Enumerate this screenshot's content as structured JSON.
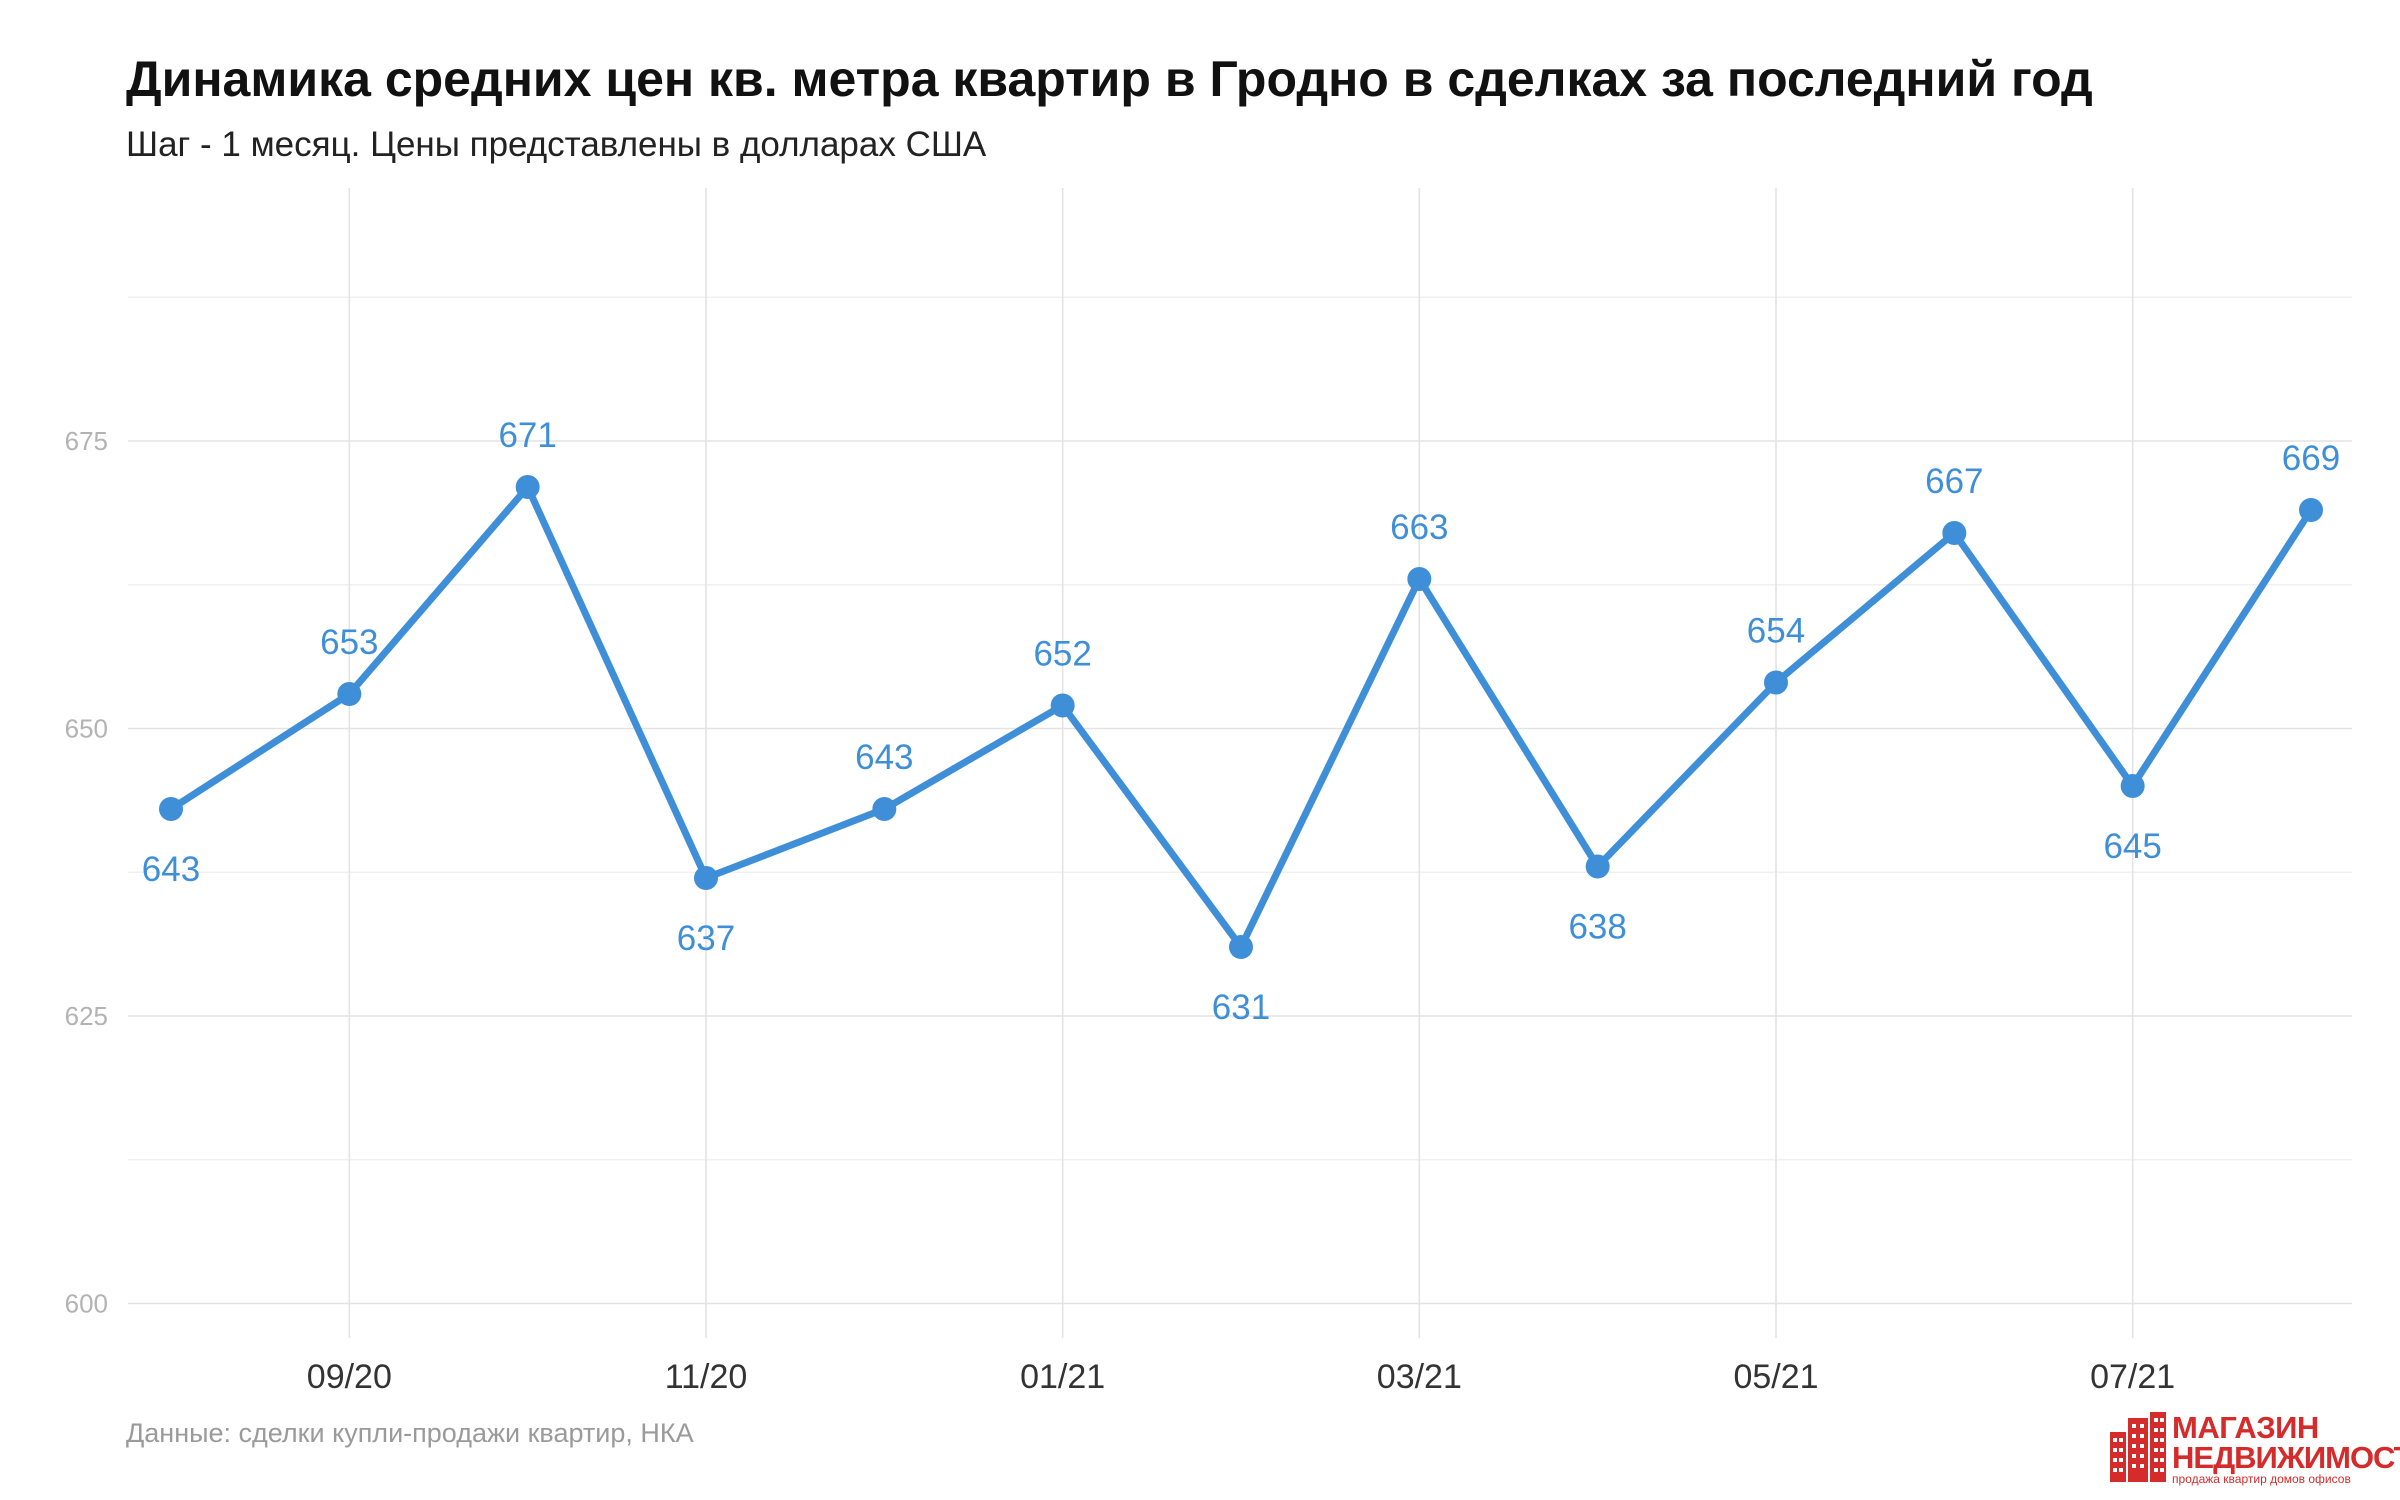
{
  "header": {
    "title": "Динамика средних цен кв. метра квартир в Гродно в сделках за последний год",
    "subtitle": "Шаг - 1 месяц. Цены представлены в долларах США"
  },
  "footer": {
    "caption": "Данные: сделки купли-продажи квартир, НКА"
  },
  "logo": {
    "line1": "МАГАЗИН",
    "line2": "НЕДВИЖИМОСТИ",
    "line3": "продажа квартир домов офисов"
  },
  "colors": {
    "series": "#3f8fd8",
    "label": "#3f8fd8",
    "logo": "#d62b2b"
  },
  "chart_data": {
    "type": "line",
    "title": "Динамика средних цен кв. метра квартир в Гродно в сделках за последний год",
    "subtitle": "Шаг - 1 месяц. Цены представлены в долларах США",
    "xlabel": "",
    "ylabel": "",
    "x": [
      "08/20",
      "09/20",
      "10/20",
      "11/20",
      "12/20",
      "01/21",
      "02/21",
      "03/21",
      "04/21",
      "05/21",
      "06/21",
      "07/21",
      "08/21"
    ],
    "x_tick_labels": [
      "09/20",
      "11/20",
      "01/21",
      "03/21",
      "05/21",
      "07/21"
    ],
    "y_tick_labels": [
      "600",
      "625",
      "650",
      "675"
    ],
    "ylim": [
      597,
      697
    ],
    "series": [
      {
        "values": [
          643,
          653,
          671,
          637,
          643,
          652,
          631,
          663,
          638,
          654,
          667,
          645,
          669
        ]
      }
    ],
    "data_labels": [
      "643",
      "653",
      "671",
      "637",
      "643",
      "652",
      "631",
      "663",
      "638",
      "654",
      "667",
      "645",
      "669"
    ],
    "grid": true,
    "legend": "none"
  }
}
